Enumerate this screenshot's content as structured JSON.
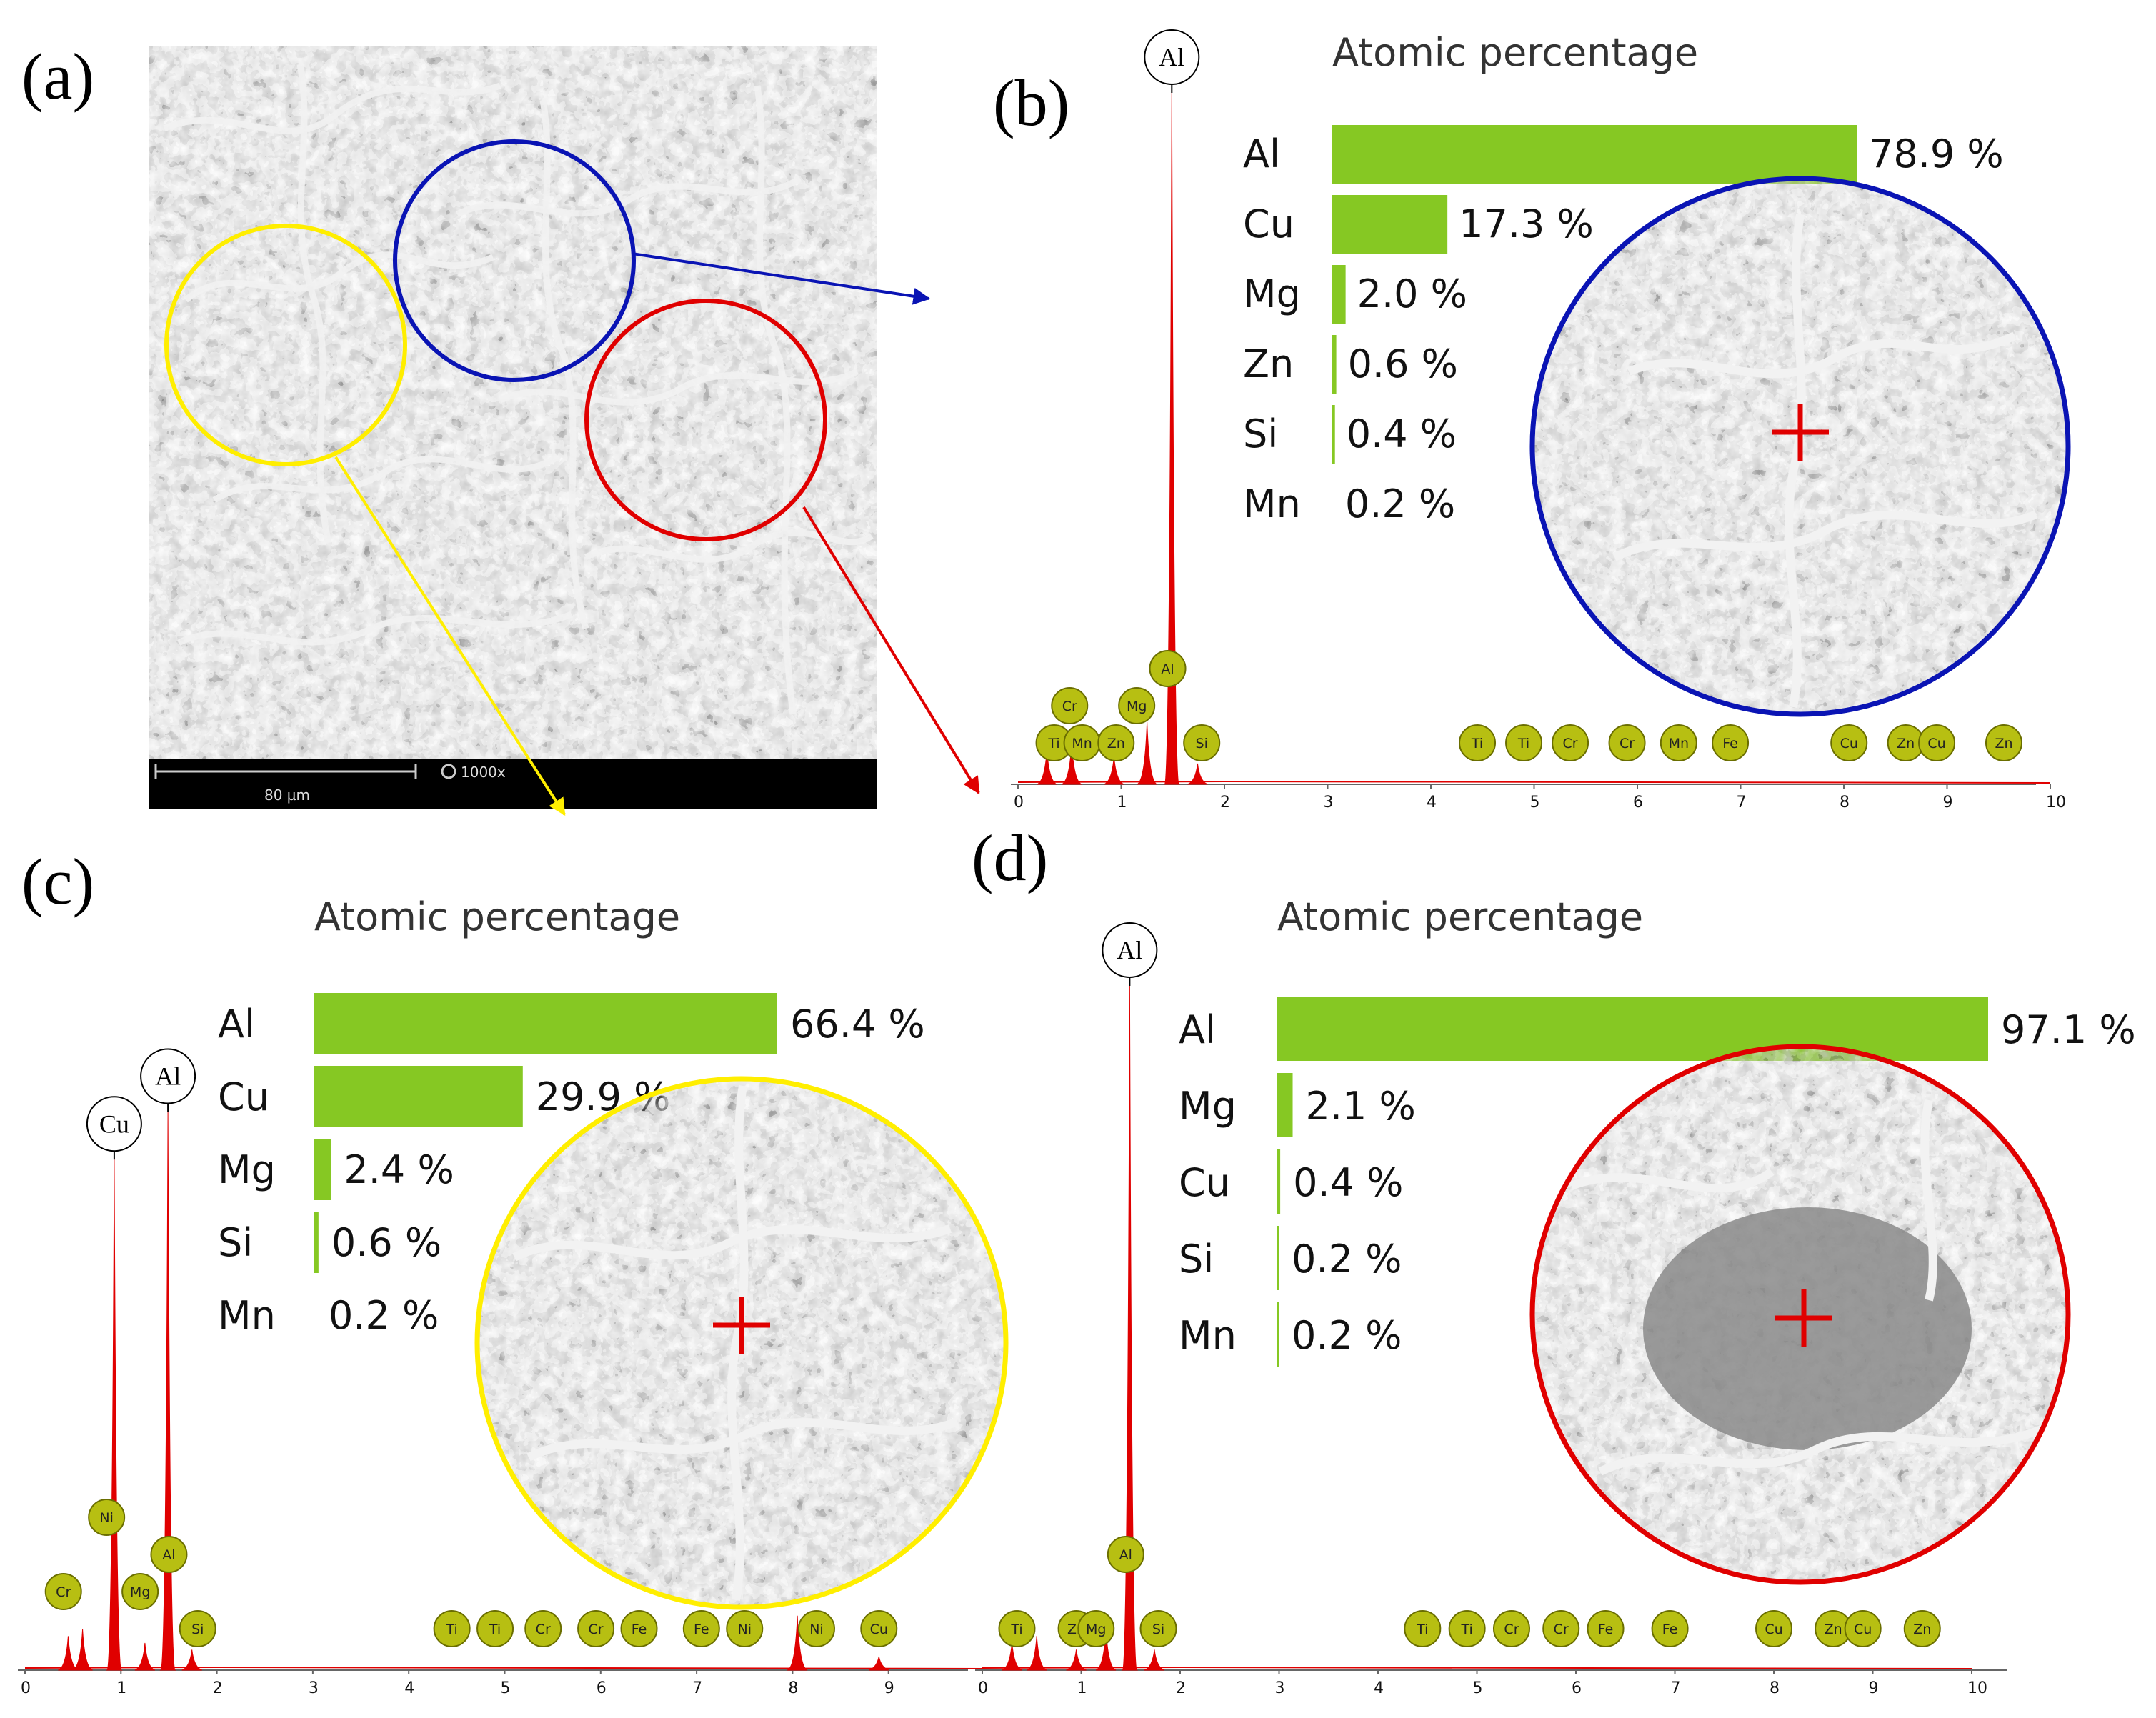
{
  "colors": {
    "bar": "#86c823",
    "spectrum": "#e00000",
    "badge": "#b7bf12",
    "blue": "#0a14b4",
    "yellow": "#ffee00",
    "red": "#e00000"
  },
  "panels": {
    "a": {
      "label": "(a)",
      "scale_label": "80 µm",
      "magnification": "1000x"
    },
    "b": {
      "label": "(b)"
    },
    "c": {
      "label": "(c)"
    },
    "d": {
      "label": "(d)"
    }
  },
  "chart_data": [
    {
      "panel": "b",
      "type": "bar",
      "title": "Atomic percentage",
      "categories": [
        "Al",
        "Cu",
        "Mg",
        "Zn",
        "Si",
        "Mn"
      ],
      "values": [
        78.9,
        17.3,
        2.0,
        0.6,
        0.4,
        0.2
      ],
      "value_labels": [
        "78.9 %",
        "17.3 %",
        "2.0 %",
        "0.6 %",
        "0.4 %",
        "0.2 %"
      ],
      "spectrum": {
        "x_ticks": [
          "0",
          "1",
          "2",
          "3",
          "4",
          "5",
          "6",
          "7",
          "8",
          "9",
          "10"
        ],
        "xlim": [
          0,
          10
        ],
        "peaks": [
          {
            "x": 0.28,
            "h": 0.05
          },
          {
            "x": 0.52,
            "h": 0.06
          },
          {
            "x": 0.93,
            "h": 0.04
          },
          {
            "x": 1.25,
            "h": 0.09
          },
          {
            "x": 1.49,
            "h": 1.0
          },
          {
            "x": 1.74,
            "h": 0.03
          }
        ],
        "peak_labels": [
          {
            "label": "Al",
            "x": 1.49
          }
        ],
        "line_markers": [
          {
            "label": "Cr",
            "x": 0.5,
            "row": 1
          },
          {
            "label": "Ti",
            "x": 0.35,
            "row": 0
          },
          {
            "label": "Mn",
            "x": 0.62,
            "row": 0
          },
          {
            "label": "Zn",
            "x": 0.95,
            "row": 0
          },
          {
            "label": "Mg",
            "x": 1.15,
            "row": 1
          },
          {
            "label": "Al",
            "x": 1.45,
            "row": 2
          },
          {
            "label": "Si",
            "x": 1.78,
            "row": 0
          },
          {
            "label": "Ti",
            "x": 4.45,
            "row": 0
          },
          {
            "label": "Ti",
            "x": 4.9,
            "row": 0
          },
          {
            "label": "Cr",
            "x": 5.35,
            "row": 0
          },
          {
            "label": "Cr",
            "x": 5.9,
            "row": 0
          },
          {
            "label": "Mn",
            "x": 6.4,
            "row": 0
          },
          {
            "label": "Fe",
            "x": 6.9,
            "row": 0
          },
          {
            "label": "Cu",
            "x": 8.05,
            "row": 0
          },
          {
            "label": "Zn",
            "x": 8.6,
            "row": 0
          },
          {
            "label": "Cu",
            "x": 8.9,
            "row": 0
          },
          {
            "label": "Zn",
            "x": 9.55,
            "row": 0
          }
        ]
      }
    },
    {
      "panel": "c",
      "type": "bar",
      "title": "Atomic percentage",
      "categories": [
        "Al",
        "Cu",
        "Mg",
        "Si",
        "Mn"
      ],
      "values": [
        66.4,
        29.9,
        2.4,
        0.6,
        0.2
      ],
      "value_labels": [
        "66.4 %",
        "29.9 %",
        "2.4 %",
        "0.6 %",
        "0.2 %"
      ],
      "spectrum": {
        "x_ticks": [
          "0",
          "1",
          "2",
          "3",
          "4",
          "5",
          "6",
          "7",
          "8",
          "9"
        ],
        "xlim": [
          0,
          10
        ],
        "peaks": [
          {
            "x": 0.45,
            "h": 0.05
          },
          {
            "x": 0.6,
            "h": 0.06
          },
          {
            "x": 0.93,
            "h": 0.75
          },
          {
            "x": 1.25,
            "h": 0.04
          },
          {
            "x": 1.49,
            "h": 0.82
          },
          {
            "x": 1.74,
            "h": 0.03
          },
          {
            "x": 8.05,
            "h": 0.08
          },
          {
            "x": 8.9,
            "h": 0.02
          }
        ],
        "peak_labels": [
          {
            "label": "Cu",
            "x": 0.93
          },
          {
            "label": "Al",
            "x": 1.49
          }
        ],
        "line_markers": [
          {
            "label": "Ni",
            "x": 0.85,
            "row": 3
          },
          {
            "label": "Cr",
            "x": 0.4,
            "row": 1
          },
          {
            "label": "Al",
            "x": 1.5,
            "row": 2
          },
          {
            "label": "Mg",
            "x": 1.2,
            "row": 1
          },
          {
            "label": "Si",
            "x": 1.8,
            "row": 0
          },
          {
            "label": "Ti",
            "x": 4.45,
            "row": 0
          },
          {
            "label": "Ti",
            "x": 4.9,
            "row": 0
          },
          {
            "label": "Cr",
            "x": 5.4,
            "row": 0
          },
          {
            "label": "Cr",
            "x": 5.95,
            "row": 0
          },
          {
            "label": "Fe",
            "x": 6.4,
            "row": 0
          },
          {
            "label": "Fe",
            "x": 7.05,
            "row": 0
          },
          {
            "label": "Ni",
            "x": 7.5,
            "row": 0
          },
          {
            "label": "Ni",
            "x": 8.25,
            "row": 0
          },
          {
            "label": "Cu",
            "x": 8.9,
            "row": 0
          }
        ]
      }
    },
    {
      "panel": "d",
      "type": "bar",
      "title": "Atomic percentage",
      "categories": [
        "Al",
        "Mg",
        "Cu",
        "Si",
        "Mn"
      ],
      "values": [
        97.1,
        2.1,
        0.4,
        0.2,
        0.2
      ],
      "value_labels": [
        "97.1 %",
        "2.1 %",
        "0.4 %",
        "0.2 %",
        "0.2 %"
      ],
      "spectrum": {
        "x_ticks": [
          "0",
          "1",
          "2",
          "3",
          "4",
          "5",
          "6",
          "7",
          "8",
          "9",
          "10"
        ],
        "xlim": [
          0,
          10
        ],
        "peaks": [
          {
            "x": 0.3,
            "h": 0.04
          },
          {
            "x": 0.55,
            "h": 0.05
          },
          {
            "x": 0.95,
            "h": 0.03
          },
          {
            "x": 1.25,
            "h": 0.06
          },
          {
            "x": 1.49,
            "h": 1.0
          },
          {
            "x": 1.74,
            "h": 0.03
          }
        ],
        "peak_labels": [
          {
            "label": "Al",
            "x": 1.49
          }
        ],
        "line_markers": [
          {
            "label": "Ti",
            "x": 0.35,
            "row": 0
          },
          {
            "label": "Zn",
            "x": 0.95,
            "row": 0
          },
          {
            "label": "Mg",
            "x": 1.15,
            "row": 0
          },
          {
            "label": "Al",
            "x": 1.45,
            "row": 2
          },
          {
            "label": "Si",
            "x": 1.78,
            "row": 0
          },
          {
            "label": "Ti",
            "x": 4.45,
            "row": 0
          },
          {
            "label": "Ti",
            "x": 4.9,
            "row": 0
          },
          {
            "label": "Cr",
            "x": 5.35,
            "row": 0
          },
          {
            "label": "Cr",
            "x": 5.85,
            "row": 0
          },
          {
            "label": "Fe",
            "x": 6.3,
            "row": 0
          },
          {
            "label": "Fe",
            "x": 6.95,
            "row": 0
          },
          {
            "label": "Cu",
            "x": 8.0,
            "row": 0
          },
          {
            "label": "Zn",
            "x": 8.6,
            "row": 0
          },
          {
            "label": "Cu",
            "x": 8.9,
            "row": 0
          },
          {
            "label": "Zn",
            "x": 9.5,
            "row": 0
          }
        ]
      }
    }
  ]
}
